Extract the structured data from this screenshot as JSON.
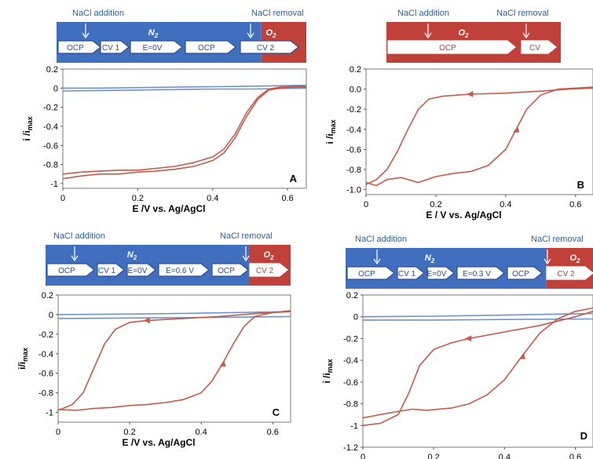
{
  "colors": {
    "n2": "#3f6fbe",
    "o2": "#c0403a",
    "trace_red": "#c85a4a",
    "trace_blue": "#6e93d0",
    "arrow_white": "#ffffff"
  },
  "chart_data": [
    {
      "type": "line",
      "panel_letter": "A",
      "xlabel": "E /V vs. Ag/AgCl",
      "ylabel": "i /i",
      "ylabel_sub": "max",
      "xlim": [
        0,
        0.65
      ],
      "ylim": [
        -1.05,
        0.2
      ],
      "xticks": [
        "0",
        "0.2",
        "0.4",
        "0.6"
      ],
      "yticks": [
        "0.2",
        "0",
        "-0.2",
        "-0.4",
        "-0.6",
        "-0.8",
        "-1"
      ],
      "protocol": {
        "annotations": [
          "NaCl addition",
          "NaCl removal"
        ],
        "gases": [
          "N2",
          "O2"
        ],
        "steps": [
          "OCP",
          "CV 1",
          "E=0V",
          "OCP",
          "CV 2"
        ]
      },
      "series": [
        {
          "color": "blue",
          "x": [
            0,
            0.1,
            0.2,
            0.3,
            0.4,
            0.5,
            0.65
          ],
          "y": [
            0.0,
            0.0,
            0.005,
            0.01,
            0.015,
            0.02,
            0.03
          ]
        },
        {
          "color": "blue",
          "x": [
            0,
            0.1,
            0.2,
            0.3,
            0.4,
            0.5,
            0.65
          ],
          "y": [
            -0.03,
            -0.025,
            -0.02,
            -0.015,
            -0.01,
            -0.01,
            0.0
          ]
        },
        {
          "color": "red",
          "x": [
            0,
            0.05,
            0.1,
            0.15,
            0.2,
            0.25,
            0.3,
            0.35,
            0.4,
            0.43,
            0.46,
            0.49,
            0.52,
            0.55,
            0.58,
            0.62,
            0.65
          ],
          "y": [
            -0.95,
            -0.92,
            -0.9,
            -0.9,
            -0.88,
            -0.87,
            -0.85,
            -0.82,
            -0.76,
            -0.68,
            -0.52,
            -0.3,
            -0.12,
            -0.02,
            0.0,
            0.01,
            0.01
          ]
        },
        {
          "color": "red",
          "x": [
            0,
            0.05,
            0.1,
            0.15,
            0.2,
            0.25,
            0.3,
            0.35,
            0.4,
            0.43,
            0.46,
            0.49,
            0.52,
            0.55,
            0.58,
            0.62,
            0.65
          ],
          "y": [
            -0.9,
            -0.88,
            -0.87,
            -0.86,
            -0.86,
            -0.84,
            -0.82,
            -0.78,
            -0.72,
            -0.64,
            -0.48,
            -0.26,
            -0.1,
            -0.01,
            0.01,
            0.02,
            0.02
          ]
        }
      ]
    },
    {
      "type": "line",
      "panel_letter": "B",
      "xlabel": "E / V vs. Ag/AgCl",
      "ylabel": "i /i",
      "ylabel_sub": "max",
      "xlim": [
        0,
        0.65
      ],
      "ylim": [
        -1.05,
        0.2
      ],
      "xticks": [
        "0",
        "0.2",
        "0.4",
        "0.6"
      ],
      "yticks": [
        "0.2",
        "0.0",
        "-0.2",
        "-0.4",
        "-0.6",
        "-0.8",
        "-1.0"
      ],
      "protocol": {
        "annotations": [
          "NaCl addition",
          "NaCl removal"
        ],
        "gases": [
          "O2"
        ],
        "steps": [
          "OCP",
          "CV"
        ]
      },
      "series": [
        {
          "color": "red",
          "x": [
            0,
            0.03,
            0.06,
            0.1,
            0.15,
            0.2,
            0.25,
            0.3,
            0.35,
            0.4,
            0.43,
            0.46,
            0.5,
            0.55,
            0.6,
            0.65
          ],
          "y": [
            -0.93,
            -0.96,
            -0.9,
            -0.88,
            -0.93,
            -0.87,
            -0.84,
            -0.82,
            -0.76,
            -0.6,
            -0.4,
            -0.2,
            -0.06,
            0.0,
            0.01,
            0.02
          ]
        },
        {
          "color": "red",
          "x": [
            0,
            0.03,
            0.06,
            0.09,
            0.12,
            0.15,
            0.18,
            0.22,
            0.3,
            0.4,
            0.5,
            0.58,
            0.65
          ],
          "y": [
            -0.95,
            -0.9,
            -0.8,
            -0.62,
            -0.4,
            -0.2,
            -0.1,
            -0.07,
            -0.05,
            -0.04,
            -0.02,
            0.0,
            0.01
          ]
        }
      ]
    },
    {
      "type": "line",
      "panel_letter": "C",
      "xlabel": "E /V vs. Ag/AgCl",
      "ylabel": "i/i",
      "ylabel_sub": "max",
      "xlim": [
        0,
        0.65
      ],
      "ylim": [
        -1.1,
        0.2
      ],
      "xticks": [
        "0",
        "0.2",
        "0.4",
        "0.6"
      ],
      "yticks": [
        "0.2",
        "0",
        "-0.2",
        "-0.4",
        "-0.6",
        "-0.8",
        "-1"
      ],
      "protocol": {
        "annotations": [
          "NaCl addition",
          "NaCl removal"
        ],
        "gases": [
          "N2",
          "O2"
        ],
        "steps": [
          "OCP",
          "CV 1",
          "E=0V",
          "E=0.6 V",
          "OCP",
          "CV 2"
        ]
      },
      "series": [
        {
          "color": "blue",
          "x": [
            0,
            0.2,
            0.4,
            0.65
          ],
          "y": [
            0.0,
            0.005,
            0.015,
            0.03
          ]
        },
        {
          "color": "blue",
          "x": [
            0,
            0.2,
            0.4,
            0.65
          ],
          "y": [
            -0.04,
            -0.035,
            -0.03,
            -0.02
          ]
        },
        {
          "color": "red",
          "x": [
            0,
            0.05,
            0.1,
            0.15,
            0.2,
            0.25,
            0.3,
            0.35,
            0.4,
            0.43,
            0.46,
            0.49,
            0.52,
            0.55,
            0.6,
            0.65
          ],
          "y": [
            -0.97,
            -0.98,
            -0.96,
            -0.95,
            -0.93,
            -0.92,
            -0.9,
            -0.87,
            -0.8,
            -0.68,
            -0.5,
            -0.3,
            -0.12,
            -0.02,
            0.02,
            0.04
          ]
        },
        {
          "color": "red",
          "x": [
            0,
            0.04,
            0.07,
            0.1,
            0.13,
            0.16,
            0.2,
            0.25,
            0.35,
            0.45,
            0.55,
            0.65
          ],
          "y": [
            -0.98,
            -0.92,
            -0.8,
            -0.55,
            -0.3,
            -0.15,
            -0.08,
            -0.06,
            -0.04,
            -0.02,
            0.01,
            0.03
          ]
        }
      ]
    },
    {
      "type": "line",
      "panel_letter": "D",
      "xlabel": "E /V vs. Ag/AgCl",
      "ylabel": "i /i",
      "ylabel_sub": "max",
      "xlim": [
        0,
        0.65
      ],
      "ylim": [
        -1.2,
        0.2
      ],
      "xticks": [
        "0",
        "0.2",
        "0.4",
        "0.6"
      ],
      "yticks": [
        "0.2",
        "0",
        "-0.2",
        "-0.4",
        "-0.6",
        "-0.8",
        "-1",
        "-1.2"
      ],
      "protocol": {
        "annotations": [
          "NaCl addition",
          "NaCl removal"
        ],
        "gases": [
          "N2",
          "O2"
        ],
        "steps": [
          "OCP",
          "CV 1",
          "E=0V",
          "E=0.3 V",
          "OCP",
          "CV 2"
        ]
      },
      "series": [
        {
          "color": "blue",
          "x": [
            0,
            0.2,
            0.4,
            0.65
          ],
          "y": [
            0.0,
            0.005,
            0.015,
            0.03
          ]
        },
        {
          "color": "blue",
          "x": [
            0,
            0.2,
            0.4,
            0.65
          ],
          "y": [
            -0.03,
            -0.03,
            -0.025,
            -0.02
          ]
        },
        {
          "color": "red",
          "x": [
            0,
            0.05,
            0.1,
            0.14,
            0.18,
            0.25,
            0.3,
            0.35,
            0.4,
            0.45,
            0.5,
            0.55,
            0.6,
            0.65
          ],
          "y": [
            -0.93,
            -0.9,
            -0.87,
            -0.85,
            -0.86,
            -0.84,
            -0.8,
            -0.72,
            -0.58,
            -0.36,
            -0.15,
            -0.02,
            0.05,
            0.08
          ]
        },
        {
          "color": "red",
          "x": [
            0,
            0.05,
            0.1,
            0.13,
            0.16,
            0.2,
            0.25,
            0.3,
            0.4,
            0.5,
            0.6,
            0.65
          ],
          "y": [
            -1.0,
            -0.98,
            -0.9,
            -0.7,
            -0.45,
            -0.3,
            -0.24,
            -0.2,
            -0.14,
            -0.08,
            0.0,
            0.05
          ]
        }
      ]
    }
  ]
}
